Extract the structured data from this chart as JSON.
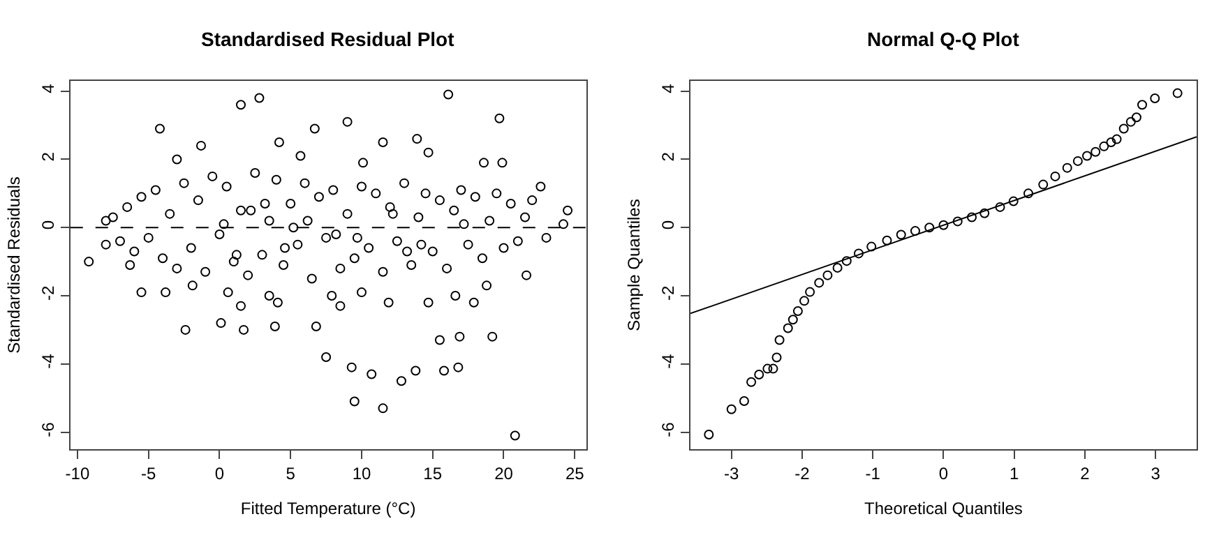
{
  "chart_data": [
    {
      "type": "scatter",
      "title": "Standardised Residual Plot",
      "xlabel": "Fitted Temperature (°C)",
      "ylabel": "Standardised Residuals",
      "xlim": [
        -10.5,
        25.8
      ],
      "ylim": [
        -6.5,
        4.3
      ],
      "xticks": [
        -10,
        -5,
        0,
        5,
        10,
        15,
        20,
        25
      ],
      "yticks": [
        -6,
        -4,
        -2,
        0,
        2,
        4
      ],
      "marker": "circle",
      "ref_lines": [
        {
          "axis": "y",
          "value": 0,
          "line_style": "dashed",
          "color": "#000000"
        }
      ],
      "series": [
        {
          "color": "#000000",
          "x": [
            -9.2,
            -8.0,
            -8.0,
            -5.5,
            -4.2,
            -2.4,
            1.5,
            2.8,
            0.1,
            1.7,
            3.9,
            6.7,
            9.0,
            6.8,
            7.5,
            9.3,
            9.5,
            10.7,
            11.5,
            12.8,
            13.8,
            15.5,
            15.8,
            16.1,
            16.9,
            16.8,
            19.2,
            19.7,
            20.8,
            21.6,
            24.5,
            24.2,
            22.6,
            11.5,
            13.9,
            14.7,
            18.6,
            19.9,
            -1.3,
            -3.0,
            4.2,
            5.7,
            10.1,
            -6.3,
            -3.8,
            -1.9,
            0.6,
            1.5,
            3.5,
            4.1,
            7.9,
            8.5,
            10.0,
            11.9,
            14.7,
            16.6,
            17.9,
            18.8,
            -7.5,
            -7.0,
            -6.5,
            -6.0,
            -5.5,
            -5.0,
            -4.5,
            -4.0,
            -3.5,
            -3.0,
            -2.5,
            -2.0,
            -1.5,
            -1.0,
            -0.5,
            0.0,
            0.5,
            1.0,
            1.5,
            2.0,
            2.5,
            3.0,
            3.5,
            4.0,
            4.5,
            5.0,
            5.5,
            6.0,
            6.5,
            7.0,
            7.5,
            8.0,
            8.5,
            9.0,
            9.5,
            10.0,
            10.5,
            11.0,
            11.5,
            12.0,
            12.5,
            13.0,
            13.5,
            14.0,
            14.5,
            15.0,
            15.5,
            16.0,
            16.5,
            17.0,
            17.5,
            18.0,
            18.5,
            19.0,
            19.5,
            20.0,
            20.5,
            21.0,
            21.5,
            22.0,
            23.0,
            0.3,
            2.2,
            4.6,
            6.2,
            8.2,
            12.2,
            14.2,
            17.2,
            1.2,
            3.2,
            5.2,
            9.7,
            13.2
          ],
          "values": [
            -1.0,
            0.2,
            -0.5,
            -1.9,
            2.9,
            -3.0,
            3.6,
            3.8,
            -2.8,
            -3.0,
            -2.9,
            2.9,
            3.1,
            -2.9,
            -3.8,
            -4.1,
            -5.1,
            -4.3,
            -5.3,
            -4.5,
            -4.2,
            -3.3,
            -4.2,
            3.9,
            -3.2,
            -4.1,
            -3.2,
            3.2,
            -6.1,
            -1.4,
            0.5,
            0.1,
            1.2,
            2.5,
            2.6,
            2.2,
            1.9,
            1.9,
            2.4,
            2.0,
            2.5,
            2.1,
            1.9,
            -1.1,
            -1.9,
            -1.7,
            -1.9,
            -2.3,
            -2.0,
            -2.2,
            -2.0,
            -2.3,
            -1.9,
            -2.2,
            -2.2,
            -2.0,
            -2.2,
            -1.7,
            0.3,
            -0.4,
            0.6,
            -0.7,
            0.9,
            -0.3,
            1.1,
            -0.9,
            0.4,
            -1.2,
            1.3,
            -0.6,
            0.8,
            -1.3,
            1.5,
            -0.2,
            1.2,
            -1.0,
            0.5,
            -1.4,
            1.6,
            -0.8,
            0.2,
            1.4,
            -1.1,
            0.7,
            -0.5,
            1.3,
            -1.5,
            0.9,
            -0.3,
            1.1,
            -1.2,
            0.4,
            -0.9,
            1.2,
            -0.6,
            1.0,
            -1.3,
            0.6,
            -0.4,
            1.3,
            -1.1,
            0.3,
            1.0,
            -0.7,
            0.8,
            -1.2,
            0.5,
            1.1,
            -0.5,
            0.9,
            -0.9,
            0.2,
            1.0,
            -0.6,
            0.7,
            -0.4,
            0.3,
            0.8,
            -0.3,
            0.1,
            0.5,
            -0.6,
            0.2,
            -0.2,
            0.4,
            -0.5,
            0.1,
            -0.8,
            0.7,
            0.0,
            -0.3,
            -0.7
          ]
        }
      ]
    },
    {
      "type": "scatter",
      "title": "Normal Q-Q Plot",
      "xlabel": "Theoretical Quantiles",
      "ylabel": "Sample Quantiles",
      "xlim": [
        -3.58,
        3.58
      ],
      "ylim": [
        -6.5,
        4.3
      ],
      "xticks": [
        -3,
        -2,
        -1,
        0,
        1,
        2,
        3
      ],
      "yticks": [
        -6,
        -4,
        -2,
        0,
        2,
        4
      ],
      "series": [
        {
          "color": "#000000",
          "marker": "circle",
          "x": [
            -3.32,
            -3.0,
            -2.82,
            -2.72,
            -2.61,
            -2.49,
            -2.41,
            -2.36,
            -2.32,
            -2.2,
            -2.13,
            -2.06,
            -1.97,
            -1.89,
            -1.76,
            -1.64,
            -1.5,
            -1.37,
            -1.2,
            -1.02,
            -0.8,
            -0.6,
            -0.4,
            -0.2,
            0.0,
            0.2,
            0.4,
            0.58,
            0.8,
            0.99,
            1.2,
            1.41,
            1.58,
            1.75,
            1.9,
            2.03,
            2.15,
            2.27,
            2.37,
            2.45,
            2.55,
            2.65,
            2.73,
            2.81,
            2.99,
            3.31
          ],
          "values": [
            -6.07,
            -5.33,
            -5.09,
            -4.53,
            -4.31,
            -4.14,
            -4.14,
            -3.81,
            -3.3,
            -2.95,
            -2.7,
            -2.45,
            -2.15,
            -1.89,
            -1.62,
            -1.4,
            -1.18,
            -0.98,
            -0.76,
            -0.56,
            -0.38,
            -0.21,
            -0.1,
            0.0,
            0.07,
            0.18,
            0.3,
            0.42,
            0.6,
            0.77,
            1.0,
            1.26,
            1.5,
            1.75,
            1.95,
            2.1,
            2.22,
            2.38,
            2.5,
            2.59,
            2.9,
            3.1,
            3.23,
            3.6,
            3.79,
            3.94
          ]
        },
        {
          "type": "line",
          "marker": "none",
          "color": "#000000",
          "x": [
            -3.58,
            3.58
          ],
          "values": [
            -2.52,
            2.66
          ]
        }
      ]
    }
  ]
}
